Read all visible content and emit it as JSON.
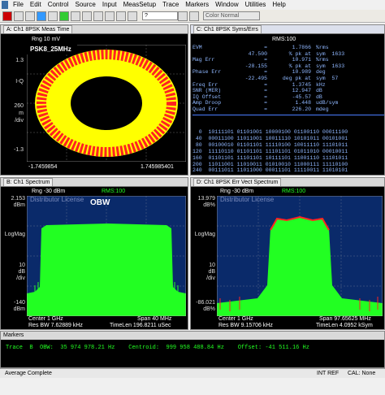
{
  "menu": [
    "File",
    "Edit",
    "Control",
    "Source",
    "Input",
    "MeasSetup",
    "Trace",
    "Markers",
    "Window",
    "Utilities",
    "Help"
  ],
  "toolbar": {
    "input_value": "?",
    "color_mode": "Color Normal"
  },
  "paneA": {
    "title": "A: Ch1 8PSK Meas Time",
    "rng": "Rng 10 mV",
    "signal_label": "PSK8_25MHz",
    "y_labels": [
      "1.3",
      "I-Q",
      "260",
      "m",
      "/div",
      "-1.3"
    ],
    "x_left": "-1.7459854",
    "x_right": "1.745985401"
  },
  "paneC": {
    "title": "C: Ch1 8PSK Syms/Errs",
    "rms": "RMS:100",
    "rows": [
      [
        "EVM",
        "=",
        "1.7866",
        "%rms"
      ],
      [
        "",
        "47.500",
        "% pk at",
        "sym  1633"
      ],
      [
        "Mag Err",
        "=",
        "10.971",
        "%rms"
      ],
      [
        "",
        "-28.155",
        "% pk at",
        "sym  1633"
      ],
      [
        "Phase Err",
        "=",
        "10.989",
        "deg"
      ],
      [
        "",
        "-22.495",
        "deg pk at",
        "sym  57"
      ],
      [
        "Freq Err",
        "=",
        "1.3745",
        "kHz"
      ],
      [
        "SNR (MER)",
        "=",
        "12.947",
        "dB"
      ],
      [
        "IQ Offset",
        "=",
        "-45.57",
        "dB"
      ],
      [
        "Amp Droop",
        "=",
        "1.448",
        "udB/sym"
      ],
      [
        "Quad Err",
        "=",
        "226.20",
        "mdeg"
      ]
    ],
    "sym_rows": [
      [
        "0",
        "10111101",
        "01101001",
        "10000100",
        "01100110",
        "00011100"
      ],
      [
        "40",
        "00011100",
        "11011001",
        "10011110",
        "10101011",
        "00101001"
      ],
      [
        "80",
        "00100010",
        "01101101",
        "11110100",
        "10011110",
        "11101011"
      ],
      [
        "120",
        "11110110",
        "01101101",
        "11101101",
        "01011010",
        "00010011"
      ],
      [
        "160",
        "01101101",
        "11101101",
        "10111101",
        "11001110",
        "11101011"
      ],
      [
        "200",
        "11011001",
        "11010011",
        "01010010",
        "11000111",
        "11110100"
      ],
      [
        "240",
        "00111011",
        "11011000",
        "00011101",
        "11110011",
        "11010101"
      ]
    ]
  },
  "paneB": {
    "title": "B: Ch1 Spectrum",
    "rng": "Rng -30 dBm",
    "rms": "RMS:100",
    "watermark": "Distributor License",
    "obw": "OBW",
    "y_labels": [
      "2.153",
      "dBm",
      "",
      "LogMag",
      "",
      "10",
      "dB",
      "/div",
      "",
      "-140",
      "dBm"
    ],
    "center": "Center 1 GHz",
    "span": "Span 40 MHz",
    "rbw": "Res BW 7.62889 kHz",
    "timelen": "TimeLen 196.8211 uSec"
  },
  "paneD": {
    "title": "D: Ch1 8PSK Err Vect Spectrum",
    "rng": "Rng -30 dBm",
    "rms": "RMS:100",
    "watermark": "Distributor License",
    "y_labels": [
      "13.979",
      "dB%",
      "",
      "LogMag",
      "",
      "10",
      "dB",
      "/div",
      "",
      "-86.021",
      "dB%"
    ],
    "center": "Center 1 GHz",
    "span": "Span 97.65625 MHz",
    "rbw": "Res BW 9.15706 kHz",
    "timelen": "TimeLen 4.0952 kSym"
  },
  "markers": {
    "title": "Markers",
    "trace_label": "Trace",
    "trace_value": "B",
    "obw_label": "OBW:",
    "obw_value": "35 974 978.21 Hz",
    "centroid_label": "Centroid:",
    "centroid_value": "999 958 488.84 Hz",
    "offset_label": "Offset:",
    "offset_value": "-41 511.16 Hz"
  },
  "status": {
    "left": "Average Complete",
    "ext": "INT REF",
    "cal": "CAL: None"
  },
  "colors": {
    "trace_green": "#22ff22",
    "trace_red": "#ff2222",
    "trace_yellow": "#ffff00",
    "grid": "#6a6a6a",
    "panel_bg": "#000000"
  }
}
